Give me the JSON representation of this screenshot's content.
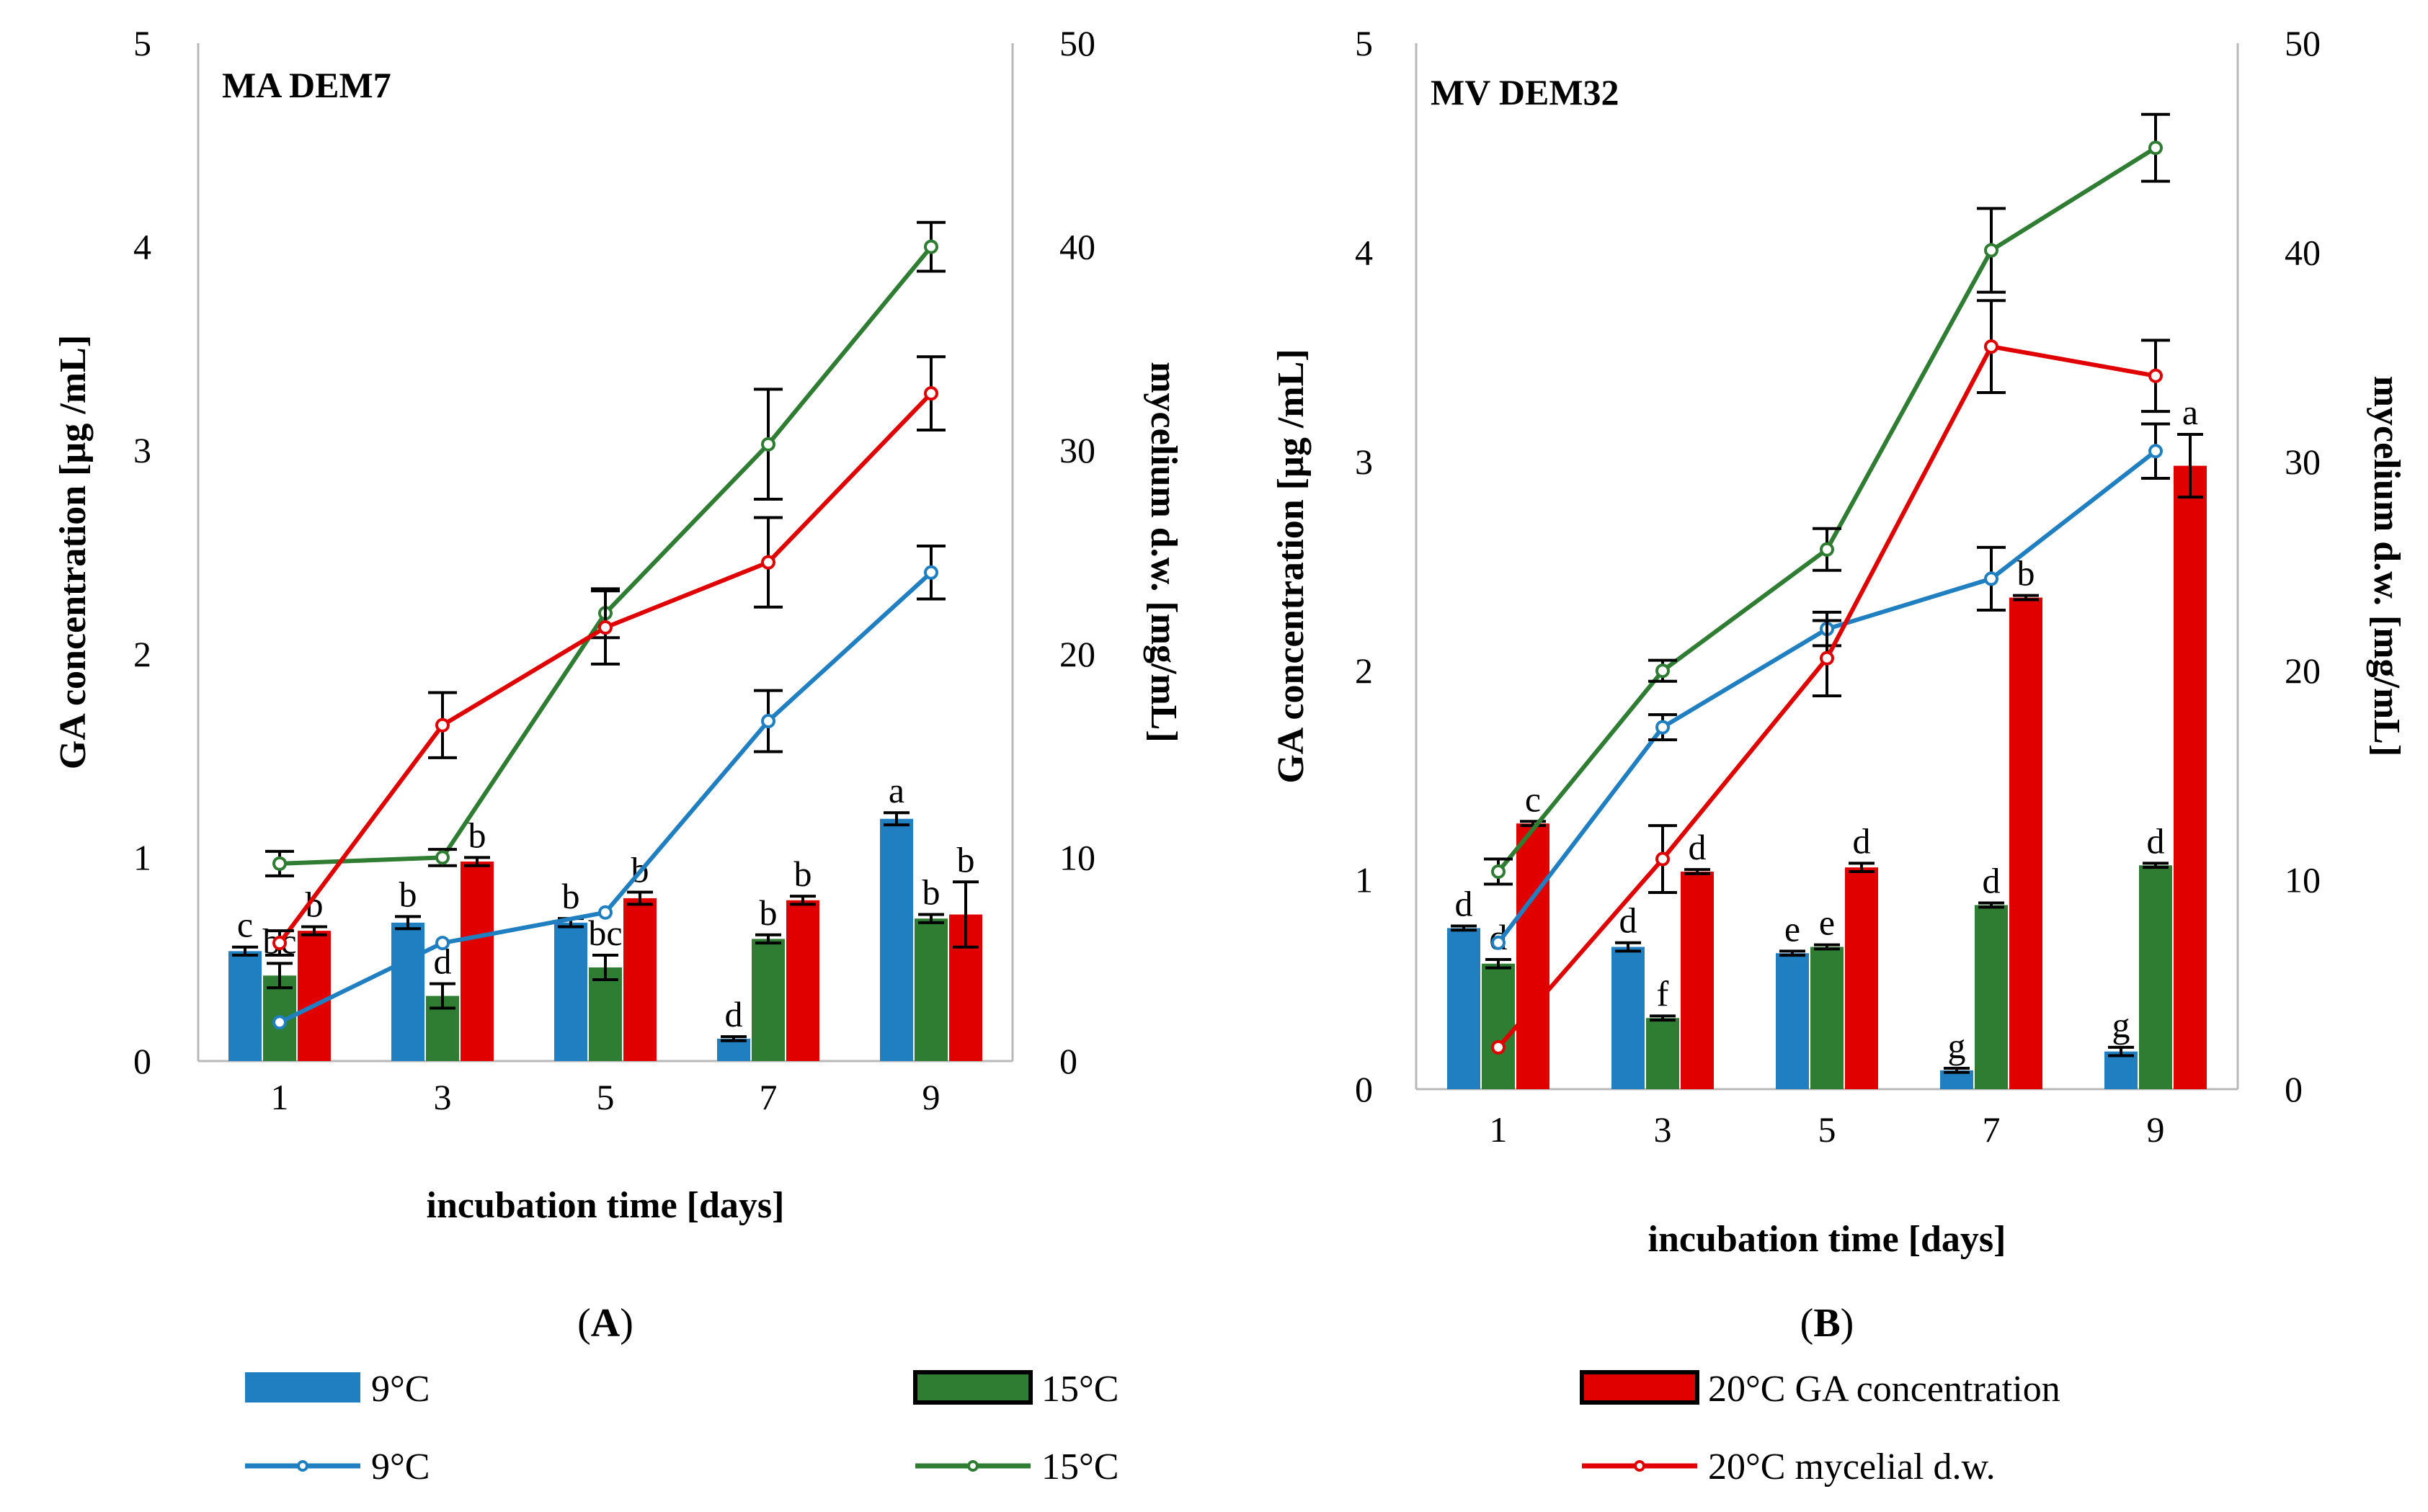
{
  "figure": {
    "legend": {
      "row1": [
        {
          "label": "9°C",
          "color": "#1f7fc1",
          "kind": "bar"
        },
        {
          "label": "15°C",
          "color": "#2e7d32",
          "kind": "bar"
        },
        {
          "label": "20°C  GA concentration",
          "color": "#e00000",
          "kind": "bar"
        }
      ],
      "row2": [
        {
          "label": "9°C",
          "color": "#1f7fc1",
          "kind": "line"
        },
        {
          "label": "15°C",
          "color": "#2e7d32",
          "kind": "line"
        },
        {
          "label": "20°C mycelial d.w.",
          "color": "#e00000",
          "kind": "line"
        }
      ]
    }
  },
  "chart_data": [
    {
      "type": "bar",
      "panel": "(A)",
      "panel_letter": "A",
      "title": "MA DEM7",
      "categories": [
        "1",
        "3",
        "5",
        "7",
        "9"
      ],
      "xlabel": "incubation time [days]",
      "ylabel": "GA concentration [µg /mL]",
      "y2label": "mycelium d.w.  [mg/mL]",
      "ylim": [
        0,
        5
      ],
      "y2lim": [
        0,
        50
      ],
      "yticks": [
        "0",
        "1",
        "2",
        "3",
        "4",
        "5"
      ],
      "y2ticks": [
        "0",
        "10",
        "20",
        "30",
        "40",
        "50"
      ],
      "bar_series": [
        {
          "name": "9°C",
          "color": "#1f7fc1",
          "values": [
            0.54,
            0.68,
            0.68,
            0.11,
            1.19
          ],
          "errors": [
            0.02,
            0.03,
            0.02,
            0.01,
            0.03
          ],
          "letters": [
            "c",
            "b",
            "b",
            "d",
            "a"
          ]
        },
        {
          "name": "15°C",
          "color": "#2e7d32",
          "values": [
            0.42,
            0.32,
            0.46,
            0.6,
            0.7
          ],
          "errors": [
            0.06,
            0.06,
            0.06,
            0.02,
            0.02
          ],
          "letters": [
            "bc",
            "d",
            "bc",
            "b",
            "b"
          ]
        },
        {
          "name": "20°C",
          "color": "#e00000",
          "values": [
            0.64,
            0.98,
            0.8,
            0.79,
            0.72
          ],
          "errors": [
            0.02,
            0.02,
            0.03,
            0.02,
            0.16
          ],
          "letters": [
            "b",
            "b",
            "b",
            "b",
            "b"
          ]
        }
      ],
      "line_series": [
        {
          "name": "9°C",
          "color": "#1f7fc1",
          "values": [
            1.9,
            5.8,
            7.3,
            16.7,
            24
          ],
          "errors": [
            0,
            0,
            0,
            1.5,
            1.3
          ]
        },
        {
          "name": "15°C",
          "color": "#2e7d32",
          "values": [
            9.7,
            10,
            22,
            30.3,
            40
          ],
          "errors": [
            0.6,
            0.4,
            1.2,
            2.7,
            1.2
          ]
        },
        {
          "name": "20°C",
          "color": "#e00000",
          "values": [
            5.8,
            16.5,
            21.3,
            24.5,
            32.8
          ],
          "errors": [
            0.6,
            1.6,
            1.8,
            2.2,
            1.8
          ]
        }
      ]
    },
    {
      "type": "bar",
      "panel": "(B)",
      "panel_letter": "B",
      "title": "MV DEM32",
      "categories": [
        "1",
        "3",
        "5",
        "7",
        "9"
      ],
      "xlabel": "incubation time [days]",
      "ylabel": "GA concentration [µg /mL]",
      "y2label": "mycelium d.w.  [mg/mL]",
      "ylim": [
        0,
        5
      ],
      "y2lim": [
        0,
        50
      ],
      "yticks": [
        "0",
        "1",
        "2",
        "3",
        "4",
        "5"
      ],
      "y2ticks": [
        "0",
        "10",
        "20",
        "30",
        "40",
        "50"
      ],
      "bar_series": [
        {
          "name": "9°C",
          "color": "#1f7fc1",
          "values": [
            0.77,
            0.68,
            0.65,
            0.09,
            0.18
          ],
          "errors": [
            0.01,
            0.02,
            0.01,
            0.01,
            0.02
          ],
          "letters": [
            "d",
            "d",
            "e",
            "g",
            "g"
          ]
        },
        {
          "name": "15°C",
          "color": "#2e7d32",
          "values": [
            0.6,
            0.34,
            0.68,
            0.88,
            1.07
          ],
          "errors": [
            0.02,
            0.01,
            0.01,
            0.01,
            0.01
          ],
          "letters": [
            "d",
            "f",
            "e",
            "d",
            "d"
          ]
        },
        {
          "name": "20°C",
          "color": "#e00000",
          "values": [
            1.27,
            1.04,
            1.06,
            2.35,
            2.98
          ],
          "errors": [
            0.01,
            0.01,
            0.02,
            0.01,
            0.15
          ],
          "letters": [
            "c",
            "d",
            "d",
            "b",
            "a"
          ]
        }
      ],
      "line_series": [
        {
          "name": "9°C",
          "color": "#1f7fc1",
          "values": [
            7,
            17.3,
            22,
            24.4,
            30.5
          ],
          "errors": [
            0,
            0.6,
            0.8,
            1.5,
            1.3
          ]
        },
        {
          "name": "15°C",
          "color": "#2e7d32",
          "values": [
            10.4,
            20,
            25.8,
            40.1,
            45
          ],
          "errors": [
            0.6,
            0.5,
            1.0,
            2.0,
            1.6
          ]
        },
        {
          "name": "20°C",
          "color": "#e00000",
          "values": [
            2,
            11,
            20.6,
            35.5,
            34.1
          ],
          "errors": [
            0,
            1.6,
            1.8,
            2.2,
            1.7
          ]
        }
      ]
    }
  ]
}
